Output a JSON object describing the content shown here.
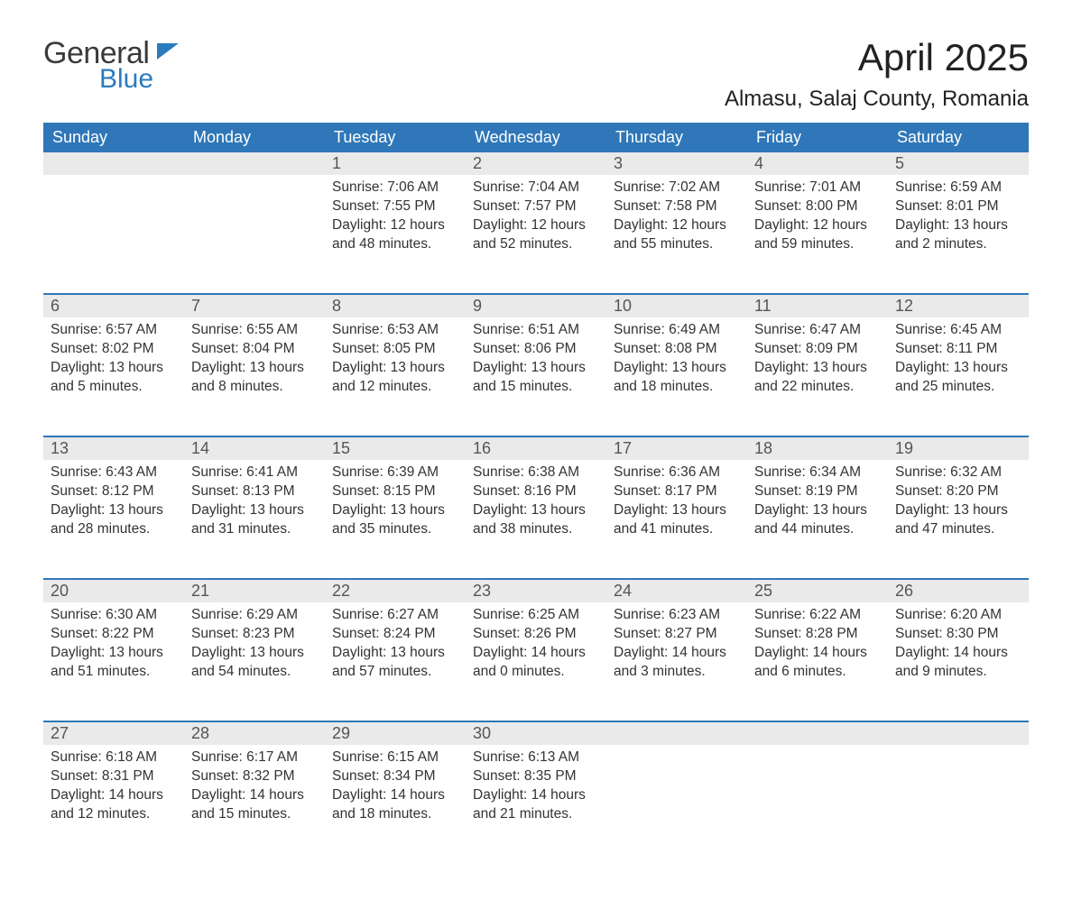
{
  "logo": {
    "line1": "General",
    "line2": "Blue"
  },
  "title": "April 2025",
  "location": "Almasu, Salaj County, Romania",
  "colors": {
    "header_bg": "#2f77b8",
    "header_text": "#ffffff",
    "daynum_bg": "#eaeaea",
    "daynum_text": "#555555",
    "body_text": "#333333",
    "rule": "#2f77b8",
    "logo_blue": "#2b7bbf",
    "logo_gray": "#3a3a3a"
  },
  "columns": [
    "Sunday",
    "Monday",
    "Tuesday",
    "Wednesday",
    "Thursday",
    "Friday",
    "Saturday"
  ],
  "weeks": [
    [
      null,
      null,
      {
        "n": "1",
        "sr": "Sunrise: 7:06 AM",
        "ss": "Sunset: 7:55 PM",
        "d1": "Daylight: 12 hours",
        "d2": "and 48 minutes."
      },
      {
        "n": "2",
        "sr": "Sunrise: 7:04 AM",
        "ss": "Sunset: 7:57 PM",
        "d1": "Daylight: 12 hours",
        "d2": "and 52 minutes."
      },
      {
        "n": "3",
        "sr": "Sunrise: 7:02 AM",
        "ss": "Sunset: 7:58 PM",
        "d1": "Daylight: 12 hours",
        "d2": "and 55 minutes."
      },
      {
        "n": "4",
        "sr": "Sunrise: 7:01 AM",
        "ss": "Sunset: 8:00 PM",
        "d1": "Daylight: 12 hours",
        "d2": "and 59 minutes."
      },
      {
        "n": "5",
        "sr": "Sunrise: 6:59 AM",
        "ss": "Sunset: 8:01 PM",
        "d1": "Daylight: 13 hours",
        "d2": "and 2 minutes."
      }
    ],
    [
      {
        "n": "6",
        "sr": "Sunrise: 6:57 AM",
        "ss": "Sunset: 8:02 PM",
        "d1": "Daylight: 13 hours",
        "d2": "and 5 minutes."
      },
      {
        "n": "7",
        "sr": "Sunrise: 6:55 AM",
        "ss": "Sunset: 8:04 PM",
        "d1": "Daylight: 13 hours",
        "d2": "and 8 minutes."
      },
      {
        "n": "8",
        "sr": "Sunrise: 6:53 AM",
        "ss": "Sunset: 8:05 PM",
        "d1": "Daylight: 13 hours",
        "d2": "and 12 minutes."
      },
      {
        "n": "9",
        "sr": "Sunrise: 6:51 AM",
        "ss": "Sunset: 8:06 PM",
        "d1": "Daylight: 13 hours",
        "d2": "and 15 minutes."
      },
      {
        "n": "10",
        "sr": "Sunrise: 6:49 AM",
        "ss": "Sunset: 8:08 PM",
        "d1": "Daylight: 13 hours",
        "d2": "and 18 minutes."
      },
      {
        "n": "11",
        "sr": "Sunrise: 6:47 AM",
        "ss": "Sunset: 8:09 PM",
        "d1": "Daylight: 13 hours",
        "d2": "and 22 minutes."
      },
      {
        "n": "12",
        "sr": "Sunrise: 6:45 AM",
        "ss": "Sunset: 8:11 PM",
        "d1": "Daylight: 13 hours",
        "d2": "and 25 minutes."
      }
    ],
    [
      {
        "n": "13",
        "sr": "Sunrise: 6:43 AM",
        "ss": "Sunset: 8:12 PM",
        "d1": "Daylight: 13 hours",
        "d2": "and 28 minutes."
      },
      {
        "n": "14",
        "sr": "Sunrise: 6:41 AM",
        "ss": "Sunset: 8:13 PM",
        "d1": "Daylight: 13 hours",
        "d2": "and 31 minutes."
      },
      {
        "n": "15",
        "sr": "Sunrise: 6:39 AM",
        "ss": "Sunset: 8:15 PM",
        "d1": "Daylight: 13 hours",
        "d2": "and 35 minutes."
      },
      {
        "n": "16",
        "sr": "Sunrise: 6:38 AM",
        "ss": "Sunset: 8:16 PM",
        "d1": "Daylight: 13 hours",
        "d2": "and 38 minutes."
      },
      {
        "n": "17",
        "sr": "Sunrise: 6:36 AM",
        "ss": "Sunset: 8:17 PM",
        "d1": "Daylight: 13 hours",
        "d2": "and 41 minutes."
      },
      {
        "n": "18",
        "sr": "Sunrise: 6:34 AM",
        "ss": "Sunset: 8:19 PM",
        "d1": "Daylight: 13 hours",
        "d2": "and 44 minutes."
      },
      {
        "n": "19",
        "sr": "Sunrise: 6:32 AM",
        "ss": "Sunset: 8:20 PM",
        "d1": "Daylight: 13 hours",
        "d2": "and 47 minutes."
      }
    ],
    [
      {
        "n": "20",
        "sr": "Sunrise: 6:30 AM",
        "ss": "Sunset: 8:22 PM",
        "d1": "Daylight: 13 hours",
        "d2": "and 51 minutes."
      },
      {
        "n": "21",
        "sr": "Sunrise: 6:29 AM",
        "ss": "Sunset: 8:23 PM",
        "d1": "Daylight: 13 hours",
        "d2": "and 54 minutes."
      },
      {
        "n": "22",
        "sr": "Sunrise: 6:27 AM",
        "ss": "Sunset: 8:24 PM",
        "d1": "Daylight: 13 hours",
        "d2": "and 57 minutes."
      },
      {
        "n": "23",
        "sr": "Sunrise: 6:25 AM",
        "ss": "Sunset: 8:26 PM",
        "d1": "Daylight: 14 hours",
        "d2": "and 0 minutes."
      },
      {
        "n": "24",
        "sr": "Sunrise: 6:23 AM",
        "ss": "Sunset: 8:27 PM",
        "d1": "Daylight: 14 hours",
        "d2": "and 3 minutes."
      },
      {
        "n": "25",
        "sr": "Sunrise: 6:22 AM",
        "ss": "Sunset: 8:28 PM",
        "d1": "Daylight: 14 hours",
        "d2": "and 6 minutes."
      },
      {
        "n": "26",
        "sr": "Sunrise: 6:20 AM",
        "ss": "Sunset: 8:30 PM",
        "d1": "Daylight: 14 hours",
        "d2": "and 9 minutes."
      }
    ],
    [
      {
        "n": "27",
        "sr": "Sunrise: 6:18 AM",
        "ss": "Sunset: 8:31 PM",
        "d1": "Daylight: 14 hours",
        "d2": "and 12 minutes."
      },
      {
        "n": "28",
        "sr": "Sunrise: 6:17 AM",
        "ss": "Sunset: 8:32 PM",
        "d1": "Daylight: 14 hours",
        "d2": "and 15 minutes."
      },
      {
        "n": "29",
        "sr": "Sunrise: 6:15 AM",
        "ss": "Sunset: 8:34 PM",
        "d1": "Daylight: 14 hours",
        "d2": "and 18 minutes."
      },
      {
        "n": "30",
        "sr": "Sunrise: 6:13 AM",
        "ss": "Sunset: 8:35 PM",
        "d1": "Daylight: 14 hours",
        "d2": "and 21 minutes."
      },
      null,
      null,
      null
    ]
  ]
}
